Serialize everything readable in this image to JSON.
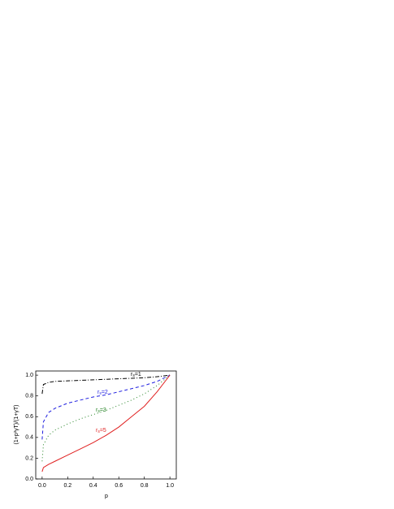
{
  "chart_data": {
    "type": "line",
    "x_label": "p",
    "y_label": "(1+p²γT)/(1+γT)",
    "x": [
      0,
      0.01,
      0.05,
      0.1,
      0.2,
      0.3,
      0.4,
      0.5,
      0.6,
      0.7,
      0.8,
      0.9,
      1.0
    ],
    "series": [
      {
        "name": "rs=1",
        "color": "#000000",
        "dash": "5,2,1,2",
        "values": [
          0.82,
          0.91,
          0.93,
          0.94,
          0.945,
          0.95,
          0.955,
          0.96,
          0.965,
          0.97,
          0.975,
          0.985,
          1.0
        ]
      },
      {
        "name": "rs=2",
        "color": "#2020e0",
        "dash": "4,3",
        "values": [
          0.38,
          0.55,
          0.64,
          0.68,
          0.73,
          0.76,
          0.79,
          0.81,
          0.84,
          0.87,
          0.9,
          0.94,
          1.0
        ]
      },
      {
        "name": "rs=3",
        "color": "#208020",
        "dash": "1,3",
        "values": [
          0.17,
          0.33,
          0.42,
          0.47,
          0.53,
          0.58,
          0.62,
          0.66,
          0.71,
          0.76,
          0.82,
          0.9,
          1.0
        ]
      },
      {
        "name": "rs=5",
        "color": "#e02020",
        "dash": "none",
        "values": [
          0.07,
          0.11,
          0.14,
          0.17,
          0.23,
          0.29,
          0.35,
          0.42,
          0.5,
          0.6,
          0.7,
          0.84,
          1.0
        ]
      }
    ],
    "xlim": [
      -0.05,
      1.05
    ],
    "ylim": [
      0,
      1.04
    ],
    "xticks": [
      {
        "value": 0,
        "label": "0.0"
      },
      {
        "value": 0.2,
        "label": "0.2"
      },
      {
        "value": 0.4,
        "label": "0.4"
      },
      {
        "value": 0.6,
        "label": "0.6"
      },
      {
        "value": 0.8,
        "label": "0.8"
      },
      {
        "value": 1,
        "label": "1.0"
      }
    ],
    "yticks": [
      {
        "value": 0,
        "label": "0.0"
      },
      {
        "value": 0.2,
        "label": "0.2"
      },
      {
        "value": 0.4,
        "label": "0.4"
      },
      {
        "value": 0.6,
        "label": "0.6"
      },
      {
        "value": 0.8,
        "label": "0.8"
      },
      {
        "value": 1,
        "label": "1.0"
      }
    ]
  }
}
